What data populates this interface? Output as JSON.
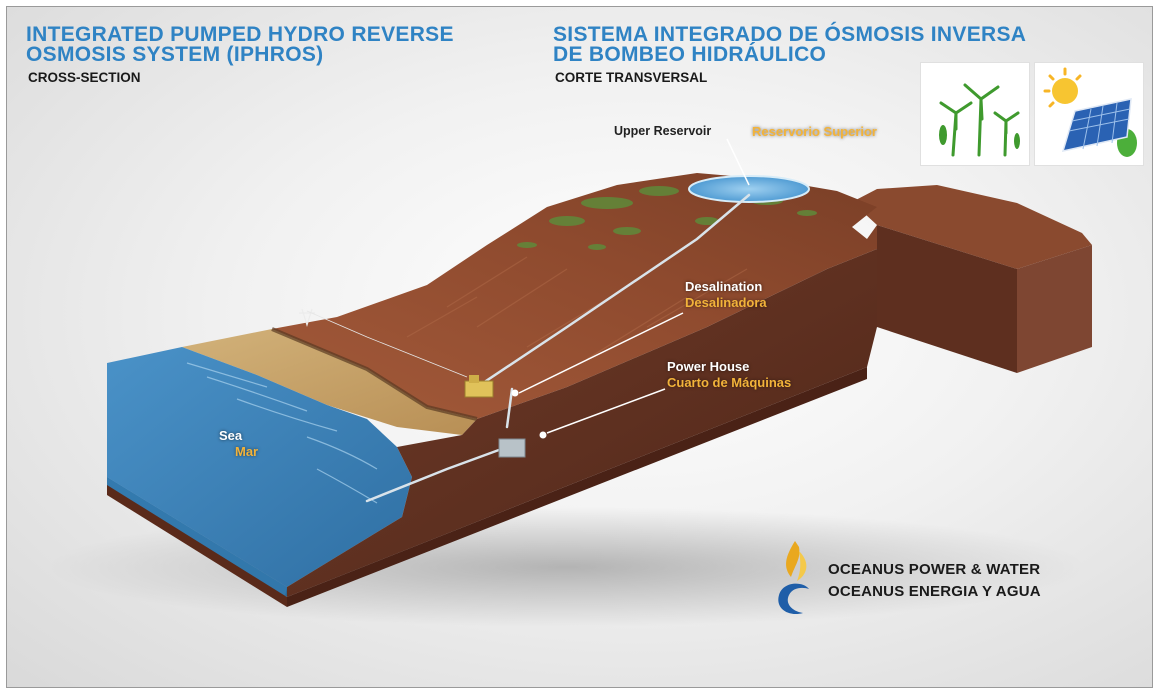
{
  "header": {
    "title_en_line1": "INTEGRATED PUMPED HYDRO REVERSE",
    "title_en_line2": "OSMOSIS SYSTEM (IPHROS)",
    "subtitle_en": "CROSS-SECTION",
    "title_es_line1": "SISTEMA INTEGRADO DE ÓSMOSIS INVERSA",
    "title_es_line2": "DE BOMBEO HIDRÁULICO",
    "subtitle_es": "CORTE TRANSVERSAL"
  },
  "labels": {
    "upper_reservoir_en": "Upper Reservoir",
    "upper_reservoir_es": "Reservorio Superior",
    "desalination_en": "Desalination",
    "desalination_es": "Desalinadora",
    "power_house_en": "Power House",
    "power_house_es": "Cuarto de Máquinas",
    "sea_en": "Sea",
    "sea_es": "Mar"
  },
  "logo": {
    "line1": "OCEANUS POWER & WATER",
    "line2": "OCEANUS ENERGIA Y AGUA"
  },
  "icons": [
    "wind-turbine-icon",
    "solar-panel-icon"
  ],
  "colors": {
    "title_blue": "#2f83c4",
    "label_orange": "#f2b33a",
    "sea_blue": "#3f88bf",
    "earth_brown": "#7a3f2a"
  }
}
